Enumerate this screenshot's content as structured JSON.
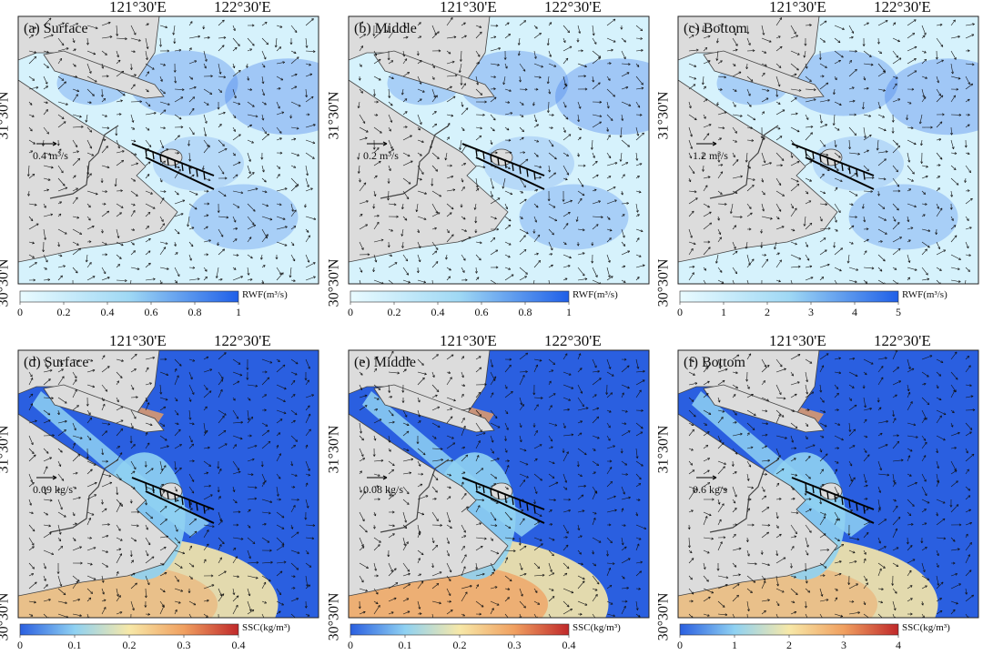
{
  "figure": {
    "rows": [
      {
        "variable": "RWF",
        "colorbar_label": "RWF(m³/s)",
        "panels": [
          {
            "label": "(a) Surface",
            "scale_text": "0.4 m³/s",
            "ticks": [
              "0",
              "0.2",
              "0.4",
              "0.6",
              "0.8",
              "1"
            ]
          },
          {
            "label": "(b) Middle",
            "scale_text": "0.2 m³/s",
            "ticks": [
              "0",
              "0.2",
              "0.4",
              "0.6",
              "0.8",
              "1"
            ]
          },
          {
            "label": "(c) Bottom",
            "scale_text": "1.2 m³/s",
            "ticks": [
              "0",
              "1",
              "2",
              "3",
              "4",
              "5"
            ]
          }
        ],
        "colormap": [
          "#e9fbff",
          "#9fd8f4",
          "#1f5fe8"
        ]
      },
      {
        "variable": "SSC",
        "colorbar_label": "SSC(kg/m³)",
        "panels": [
          {
            "label": "(d) Surface",
            "scale_text": "0.09 kg/s",
            "ticks": [
              "0",
              "0.1",
              "0.2",
              "0.3",
              "0.4"
            ]
          },
          {
            "label": "(e) Middle",
            "scale_text": "0.08 kg/s",
            "ticks": [
              "0",
              "0.1",
              "0.2",
              "0.3",
              "0.4"
            ]
          },
          {
            "label": "(f) Bottom",
            "scale_text": "0.6 kg/s",
            "ticks": [
              "0",
              "1",
              "2",
              "3",
              "4"
            ]
          }
        ],
        "colormap": [
          "#2a5fe0",
          "#8fd1f2",
          "#f7e8a8",
          "#f0a060",
          "#c0282a"
        ]
      }
    ],
    "lon_labels": [
      "121°30'E",
      "122°30'E"
    ],
    "lat_labels": [
      "31°30'N",
      "30°30'N"
    ],
    "colors": {
      "land": "#dcdcdc",
      "coast": "#444444",
      "arrow": "#111111"
    }
  }
}
